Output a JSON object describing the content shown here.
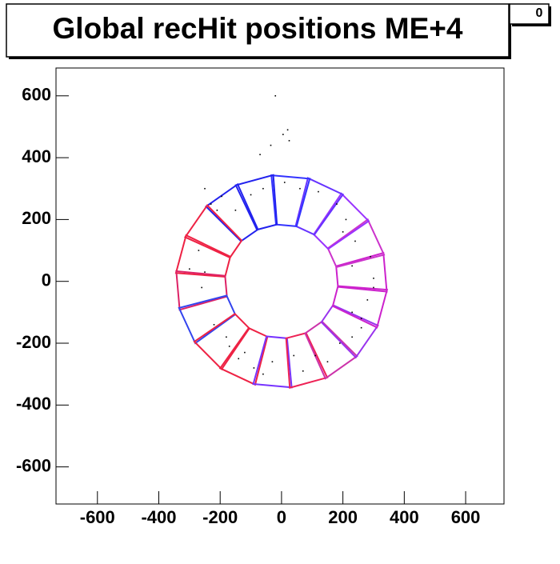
{
  "chart_data": {
    "type": "scatter",
    "title": "Global recHit positions ME+4",
    "annotation": "0",
    "xlim": [
      -735,
      725
    ],
    "ylim": [
      -720,
      690
    ],
    "xticks": [
      -600,
      -400,
      -200,
      0,
      200,
      400,
      600
    ],
    "yticks": [
      -600,
      -400,
      -200,
      0,
      200,
      400,
      600
    ],
    "points": {
      "color": "#000000",
      "x": [
        -35,
        5,
        20,
        25,
        -70,
        -20,
        -195,
        -210,
        -230,
        -250,
        -270,
        -300,
        -260,
        -250,
        -220,
        -180,
        -170,
        -140,
        -120,
        -90,
        -60,
        -30,
        40,
        70,
        110,
        150,
        190,
        230,
        260,
        280,
        300,
        290,
        240,
        210,
        180,
        120,
        60,
        10,
        -60,
        -100,
        -150,
        200,
        230,
        260,
        300,
        230
      ],
      "y": [
        440,
        475,
        490,
        455,
        410,
        600,
        275,
        230,
        250,
        300,
        100,
        40,
        -20,
        30,
        -140,
        -180,
        -210,
        -250,
        -230,
        -280,
        -300,
        -260,
        -240,
        -290,
        -240,
        -260,
        -200,
        -180,
        -150,
        -60,
        10,
        80,
        130,
        200,
        250,
        290,
        300,
        320,
        300,
        280,
        230,
        160,
        -100,
        -120,
        -20,
        50
      ]
    },
    "outlines": [
      {
        "color": "#cc22cc",
        "x": [
          184,
          343,
          332,
          178
        ],
        "y": [
          -18,
          -33,
          92,
          49
        ]
      },
      {
        "color": "#cc33cc",
        "x": [
          179,
          334,
          281,
          151
        ],
        "y": [
          46,
          86,
          200,
          107
        ]
      },
      {
        "color": "#9933ff",
        "x": [
          152,
          284,
          195,
          105
        ],
        "y": [
          105,
          195,
          284,
          152
        ]
      },
      {
        "color": "#6633ff",
        "x": [
          107,
          200,
          86,
          46
        ],
        "y": [
          151,
          281,
          334,
          179
        ]
      },
      {
        "color": "#3333ff",
        "x": [
          49,
          92,
          -33,
          -18
        ],
        "y": [
          178,
          332,
          343,
          184
        ]
      },
      {
        "color": "#2222ee",
        "x": [
          -15,
          -27,
          -149,
          -80
        ],
        "y": [
          184,
          344,
          311,
          167
        ]
      },
      {
        "color": "#2222ee",
        "x": [
          -77,
          -143,
          -246,
          -132
        ],
        "y": [
          168,
          314,
          242,
          130
        ]
      },
      {
        "color": "#ee2244",
        "x": [
          -130,
          -242,
          -314,
          -168
        ],
        "y": [
          132,
          246,
          143,
          77
        ]
      },
      {
        "color": "#ee2244",
        "x": [
          -167,
          -311,
          -344,
          -184
        ],
        "y": [
          80,
          149,
          27,
          15
        ]
      },
      {
        "color": "#dd2266",
        "x": [
          -184,
          -343,
          -332,
          -178
        ],
        "y": [
          18,
          33,
          -92,
          -49
        ]
      },
      {
        "color": "#3344ee",
        "x": [
          -179,
          -334,
          -281,
          -151
        ],
        "y": [
          -46,
          -86,
          -200,
          -107
        ]
      },
      {
        "color": "#ee2244",
        "x": [
          -152,
          -284,
          -195,
          -105
        ],
        "y": [
          -105,
          -195,
          -284,
          -152
        ]
      },
      {
        "color": "#ee2244",
        "x": [
          -107,
          -200,
          -86,
          -46
        ],
        "y": [
          -151,
          -281,
          -334,
          -179
        ]
      },
      {
        "color": "#7733ff",
        "x": [
          -49,
          -92,
          33,
          18
        ],
        "y": [
          -178,
          -332,
          -343,
          -184
        ]
      },
      {
        "color": "#ee2255",
        "x": [
          15,
          27,
          149,
          80
        ],
        "y": [
          -184,
          -344,
          -311,
          -167
        ]
      },
      {
        "color": "#cc33aa",
        "x": [
          77,
          143,
          246,
          132
        ],
        "y": [
          -168,
          -314,
          -242,
          -130
        ]
      },
      {
        "color": "#9933ee",
        "x": [
          130,
          242,
          314,
          168
        ],
        "y": [
          -132,
          -246,
          -143,
          -77
        ]
      },
      {
        "color": "#cc22cc",
        "x": [
          167,
          311,
          344,
          184
        ],
        "y": [
          -80,
          -149,
          -27,
          -15
        ]
      }
    ]
  }
}
